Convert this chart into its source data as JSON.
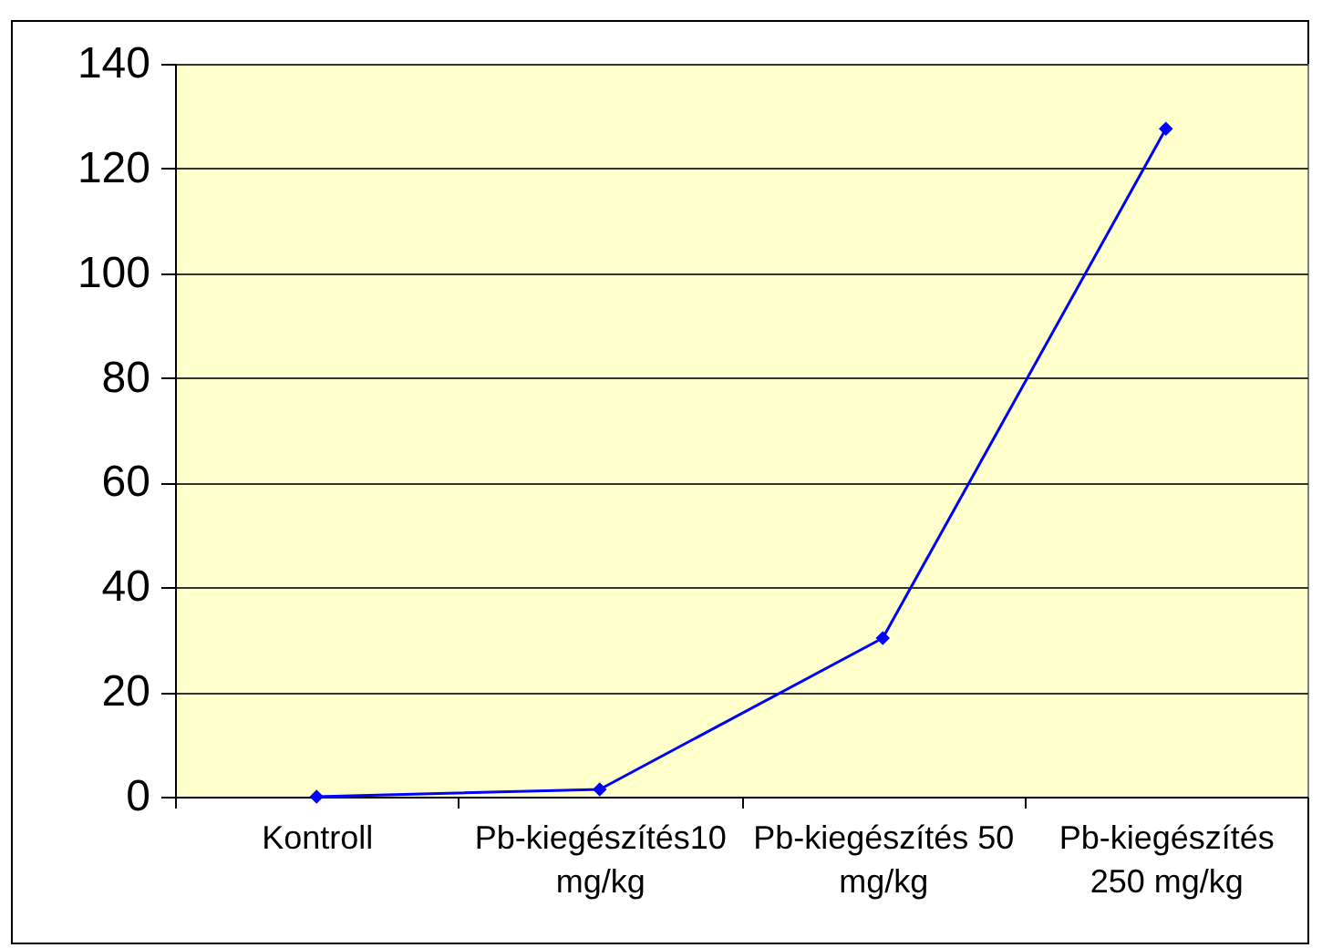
{
  "chart_data": {
    "type": "line",
    "categories": [
      "Kontroll",
      "Pb-kiegészítés10 mg/kg",
      "Pb-kiegészítés 50 mg/kg",
      "Pb-kiegészítés 250 mg/kg"
    ],
    "series": [
      {
        "color": "#0000ff",
        "values": [
          0,
          1.4,
          30.3,
          127.6
        ]
      }
    ],
    "ylim": [
      0,
      140
    ],
    "yticks": [
      0,
      20,
      40,
      60,
      80,
      100,
      120,
      140
    ],
    "grid": "y",
    "marker": "diamond",
    "line_style": "solid"
  }
}
